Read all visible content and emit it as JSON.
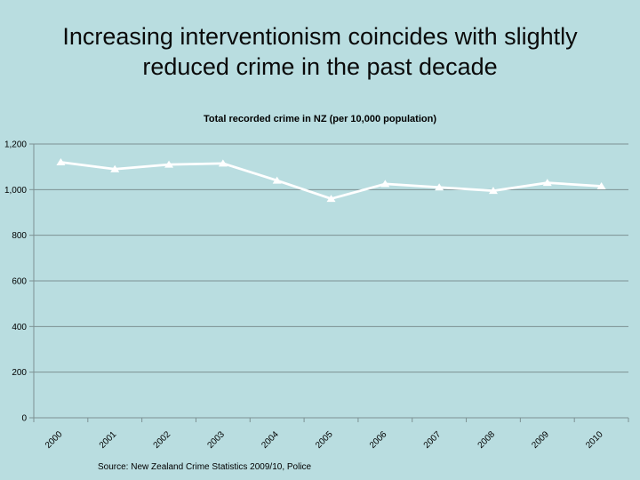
{
  "slide": {
    "background_color": "#b9dde0",
    "title_lines": [
      "Increasing interventionism coincides with slightly",
      "reduced crime in the past decade"
    ],
    "source_note": "Source: New Zealand Crime Statistics 2009/10, Police"
  },
  "chart_data": {
    "type": "line",
    "title": "Total recorded crime in NZ (per 10,000 population)",
    "categories": [
      "2000",
      "2001",
      "2002",
      "2003",
      "2004",
      "2005",
      "2006",
      "2007",
      "2008",
      "2009",
      "2010"
    ],
    "series": [
      {
        "name": "Total recorded crime in NZ per 10,000 population",
        "values": [
          1120,
          1090,
          1110,
          1115,
          1040,
          960,
          1025,
          1010,
          995,
          1030,
          1015
        ]
      }
    ],
    "ylim": [
      0,
      1200
    ],
    "ytick_values": [
      0,
      200,
      400,
      600,
      800,
      1000,
      1200
    ],
    "ytick_labels": [
      "0",
      "200",
      "400",
      "600",
      "800",
      "1,000",
      "1,200"
    ],
    "xlabel": "",
    "ylabel": "",
    "grid": true,
    "legend_position": "none",
    "x_tick_rotation": -45,
    "line_color": "#ffffff",
    "marker": "triangle-up",
    "axis_color": "#7d9193",
    "text_color": "#000000"
  }
}
